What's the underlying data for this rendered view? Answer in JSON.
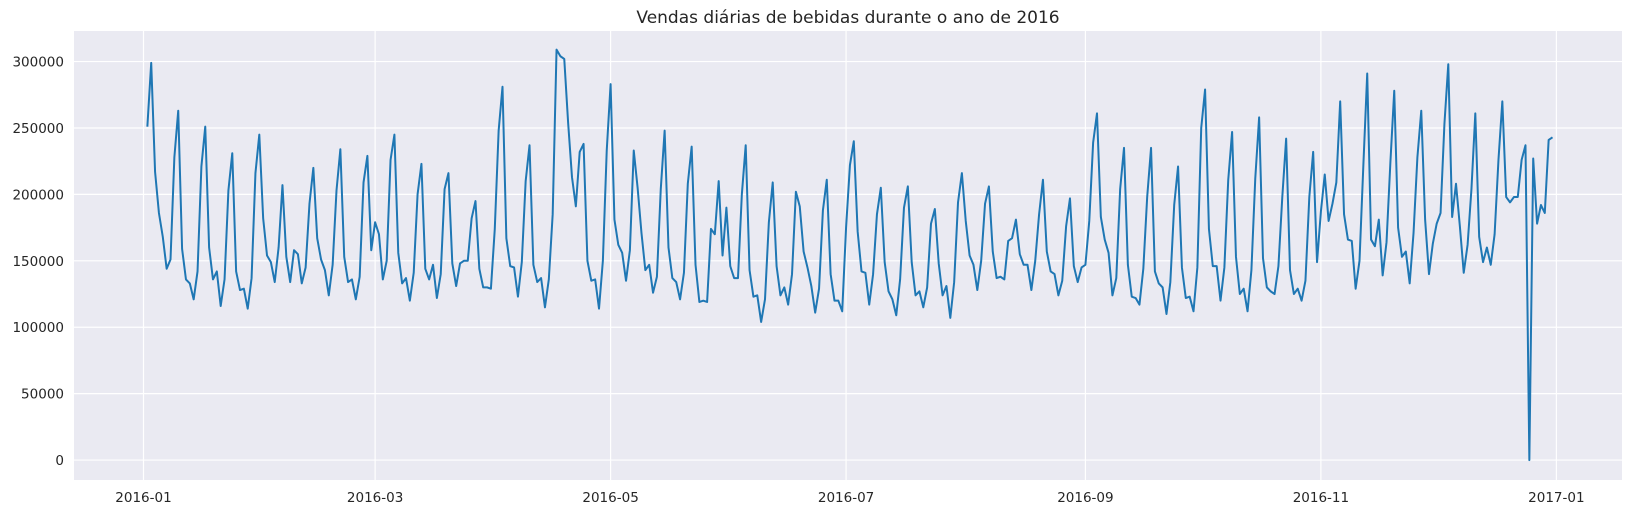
{
  "chart_data": {
    "type": "line",
    "title": "Vendas diárias de bebidas durante o ano de 2016",
    "xlabel": "",
    "ylabel": "",
    "x_start": "2016-01-02",
    "x_end": "2016-12-31",
    "xlim": [
      "2015-12-14",
      "2017-01-18"
    ],
    "ylim": [
      -15000,
      323000
    ],
    "x_ticks": [
      "2016-01",
      "2016-03",
      "2016-05",
      "2016-07",
      "2016-09",
      "2016-11",
      "2017-01"
    ],
    "y_ticks": [
      0,
      50000,
      100000,
      150000,
      200000,
      250000,
      300000
    ],
    "grid": true,
    "background_color": "#eaeaf2",
    "line_color": "#1f77b4",
    "series": [
      {
        "values": [
          251000,
          299000,
          217000,
          186000,
          168000,
          144000,
          151000,
          228000,
          263000,
          159000,
          136000,
          133000,
          121000,
          142000,
          221000,
          251000,
          160000,
          136000,
          142000,
          116000,
          136000,
          203000,
          231000,
          142000,
          128000,
          129000,
          114000,
          137000,
          216000,
          245000,
          182000,
          154000,
          149000,
          134000,
          160000,
          207000,
          153000,
          134000,
          158000,
          155000,
          133000,
          145000,
          193000,
          220000,
          167000,
          151000,
          143000,
          124000,
          147000,
          203000,
          234000,
          153000,
          134000,
          136000,
          121000,
          138000,
          209000,
          229000,
          158000,
          179000,
          170000,
          136000,
          150000,
          226000,
          245000,
          156000,
          133000,
          137000,
          120000,
          141000,
          200000,
          223000,
          144000,
          136000,
          147000,
          122000,
          140000,
          204000,
          216000,
          148000,
          131000,
          148000,
          150000,
          150000,
          182000,
          195000,
          144000,
          130000,
          130000,
          129000,
          174000,
          248000,
          281000,
          167000,
          146000,
          145000,
          123000,
          149000,
          210000,
          237000,
          147000,
          134000,
          137000,
          115000,
          136000,
          185000,
          309000,
          304000,
          302000,
          254000,
          213000,
          191000,
          232000,
          238000,
          150000,
          135000,
          136000,
          114000,
          150000,
          233000,
          283000,
          181000,
          162000,
          156000,
          135000,
          158000,
          233000,
          205000,
          171000,
          143000,
          147000,
          126000,
          138000,
          204000,
          248000,
          160000,
          137000,
          134000,
          121000,
          141000,
          208000,
          236000,
          147000,
          119000,
          120000,
          119000,
          174000,
          170000,
          210000,
          154000,
          190000,
          146000,
          137000,
          137000,
          200000,
          237000,
          143000,
          123000,
          124000,
          104000,
          121000,
          179000,
          209000,
          146000,
          124000,
          130000,
          117000,
          140000,
          202000,
          191000,
          157000,
          145000,
          131000,
          111000,
          129000,
          188000,
          211000,
          140000,
          120000,
          120000,
          112000,
          175000,
          222000,
          240000,
          172000,
          142000,
          141000,
          117000,
          140000,
          185000,
          205000,
          149000,
          127000,
          121000,
          109000,
          136000,
          190000,
          206000,
          149000,
          124000,
          127000,
          115000,
          130000,
          178000,
          189000,
          148000,
          124000,
          131000,
          107000,
          134000,
          194000,
          216000,
          180000,
          154000,
          147000,
          128000,
          150000,
          193000,
          206000,
          157000,
          137000,
          138000,
          136000,
          165000,
          167000,
          181000,
          155000,
          147000,
          147000,
          128000,
          150000,
          185000,
          211000,
          157000,
          142000,
          140000,
          124000,
          135000,
          176000,
          197000,
          146000,
          134000,
          145000,
          147000,
          180000,
          239000,
          261000,
          183000,
          166000,
          156000,
          124000,
          137000,
          204000,
          235000,
          147000,
          123000,
          122000,
          117000,
          144000,
          198000,
          235000,
          142000,
          133000,
          130000,
          110000,
          134000,
          192000,
          221000,
          145000,
          122000,
          123000,
          112000,
          145000,
          250000,
          279000,
          174000,
          146000,
          146000,
          120000,
          145000,
          211000,
          247000,
          153000,
          125000,
          129000,
          112000,
          143000,
          212000,
          258000,
          152000,
          130000,
          127000,
          125000,
          146000,
          198000,
          242000,
          143000,
          125000,
          129000,
          120000,
          135000,
          198000,
          232000,
          149000,
          187000,
          215000,
          180000,
          193000,
          209000,
          270000,
          185000,
          166000,
          165000,
          129000,
          150000,
          222000,
          291000,
          166000,
          161000,
          181000,
          139000,
          164000,
          224000,
          278000,
          175000,
          153000,
          157000,
          133000,
          171000,
          228000,
          263000,
          181000,
          140000,
          163000,
          178000,
          186000,
          253000,
          298000,
          183000,
          208000,
          176000,
          141000,
          162000,
          204000,
          261000,
          168000,
          149000,
          160000,
          147000,
          170000,
          226000,
          270000,
          198000,
          194000,
          198000,
          198000,
          226000,
          237000,
          0,
          227000,
          178000,
          192000,
          186000,
          241000,
          243000
        ]
      }
    ]
  }
}
